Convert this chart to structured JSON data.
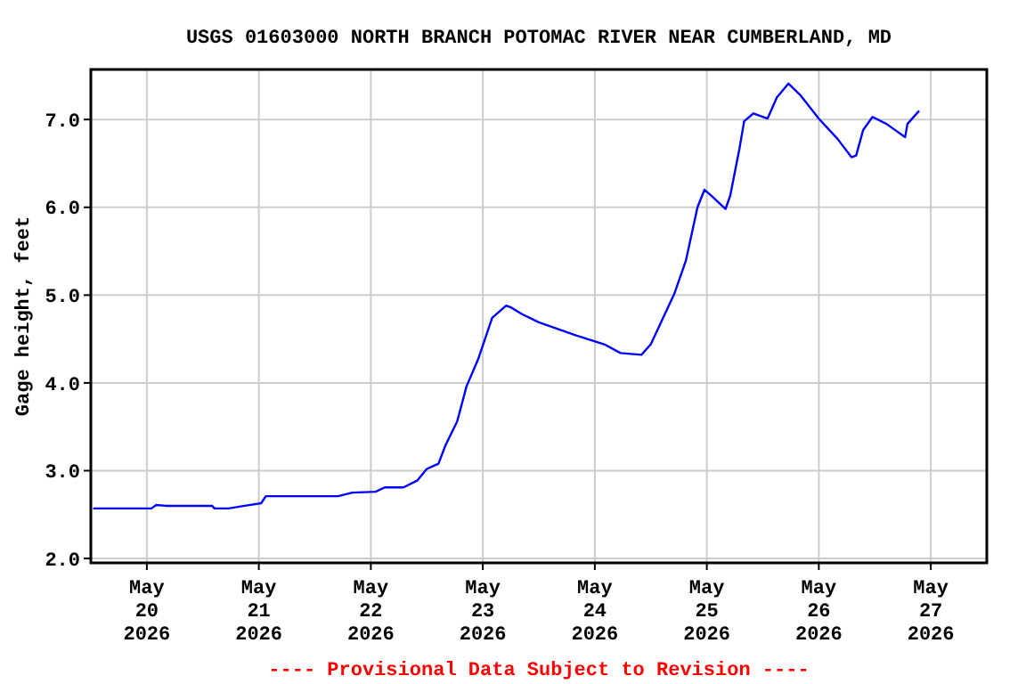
{
  "chart_data": {
    "type": "line",
    "title": "USGS 01603000 NORTH BRANCH POTOMAC RIVER NEAR CUMBERLAND, MD",
    "ylabel": "Gage height, feet",
    "annotations": [
      "---- Provisional Data Subject to Revision ----"
    ],
    "xlim": [
      "2026-05-19T12:00",
      "2026-05-27T12:00"
    ],
    "xticks": [
      {
        "value": "2026-05-20",
        "label": "May\n20\n2026"
      },
      {
        "value": "2026-05-21",
        "label": "May\n21\n2026"
      },
      {
        "value": "2026-05-22",
        "label": "May\n22\n2026"
      },
      {
        "value": "2026-05-23",
        "label": "May\n23\n2026"
      },
      {
        "value": "2026-05-24",
        "label": "May\n24\n2026"
      },
      {
        "value": "2026-05-25",
        "label": "May\n25\n2026"
      },
      {
        "value": "2026-05-26",
        "label": "May\n26\n2026"
      },
      {
        "value": "2026-05-27",
        "label": "May\n27\n2026"
      }
    ],
    "ylim": [
      1.95,
      7.57
    ],
    "yticks": [
      {
        "value": 2,
        "label": "2.0"
      },
      {
        "value": 3,
        "label": "3.0"
      },
      {
        "value": 4,
        "label": "4.0"
      },
      {
        "value": 5,
        "label": "5.0"
      },
      {
        "value": 6,
        "label": "6.0"
      },
      {
        "value": 7,
        "label": "7.0"
      }
    ],
    "grid": true,
    "x": [
      "2026-05-19T12:30",
      "2026-05-20T01:00",
      "2026-05-20T02:00",
      "2026-05-20T04:00",
      "2026-05-20T14:00",
      "2026-05-20T14:30",
      "2026-05-20T17:30",
      "2026-05-20T21:00",
      "2026-05-21T00:30",
      "2026-05-21T01:30",
      "2026-05-21T04:00",
      "2026-05-21T17:00",
      "2026-05-21T20:00",
      "2026-05-22T01:00",
      "2026-05-22T03:00",
      "2026-05-22T07:00",
      "2026-05-22T10:00",
      "2026-05-22T12:00",
      "2026-05-22T14:30",
      "2026-05-22T16:00",
      "2026-05-22T18:30",
      "2026-05-22T20:30",
      "2026-05-22T23:00",
      "2026-05-23T02:00",
      "2026-05-23T05:00",
      "2026-05-23T06:00",
      "2026-05-23T08:30",
      "2026-05-23T12:00",
      "2026-05-23T20:00",
      "2026-05-24T02:00",
      "2026-05-24T05:30",
      "2026-05-24T10:00",
      "2026-05-24T12:00",
      "2026-05-24T17:00",
      "2026-05-24T19:30",
      "2026-05-24T22:00",
      "2026-05-24T23:30",
      "2026-05-25T01:00",
      "2026-05-25T04:00",
      "2026-05-25T05:00",
      "2026-05-25T07:00",
      "2026-05-25T08:00",
      "2026-05-25T10:00",
      "2026-05-25T13:00",
      "2026-05-25T15:00",
      "2026-05-25T17:30",
      "2026-05-25T20:00",
      "2026-05-26T00:00",
      "2026-05-26T04:00",
      "2026-05-26T07:00",
      "2026-05-26T08:00",
      "2026-05-26T09:30",
      "2026-05-26T11:30",
      "2026-05-26T14:30",
      "2026-05-26T18:30",
      "2026-05-26T19:00",
      "2026-05-26T21:30"
    ],
    "series": [
      {
        "color": "#0000ff",
        "values": [
          2.57,
          2.57,
          2.61,
          2.6,
          2.6,
          2.57,
          2.57,
          2.6,
          2.63,
          2.71,
          2.71,
          2.71,
          2.75,
          2.76,
          2.81,
          2.81,
          2.89,
          3.02,
          3.08,
          3.29,
          3.56,
          3.96,
          4.27,
          4.74,
          4.88,
          4.86,
          4.78,
          4.69,
          4.54,
          4.44,
          4.34,
          4.32,
          4.44,
          5.01,
          5.39,
          6.0,
          6.2,
          6.13,
          5.98,
          6.13,
          6.67,
          6.98,
          7.07,
          7.01,
          7.25,
          7.41,
          7.28,
          7.01,
          6.78,
          6.57,
          6.59,
          6.88,
          7.03,
          6.95,
          6.8,
          6.95,
          7.1
        ]
      }
    ]
  }
}
